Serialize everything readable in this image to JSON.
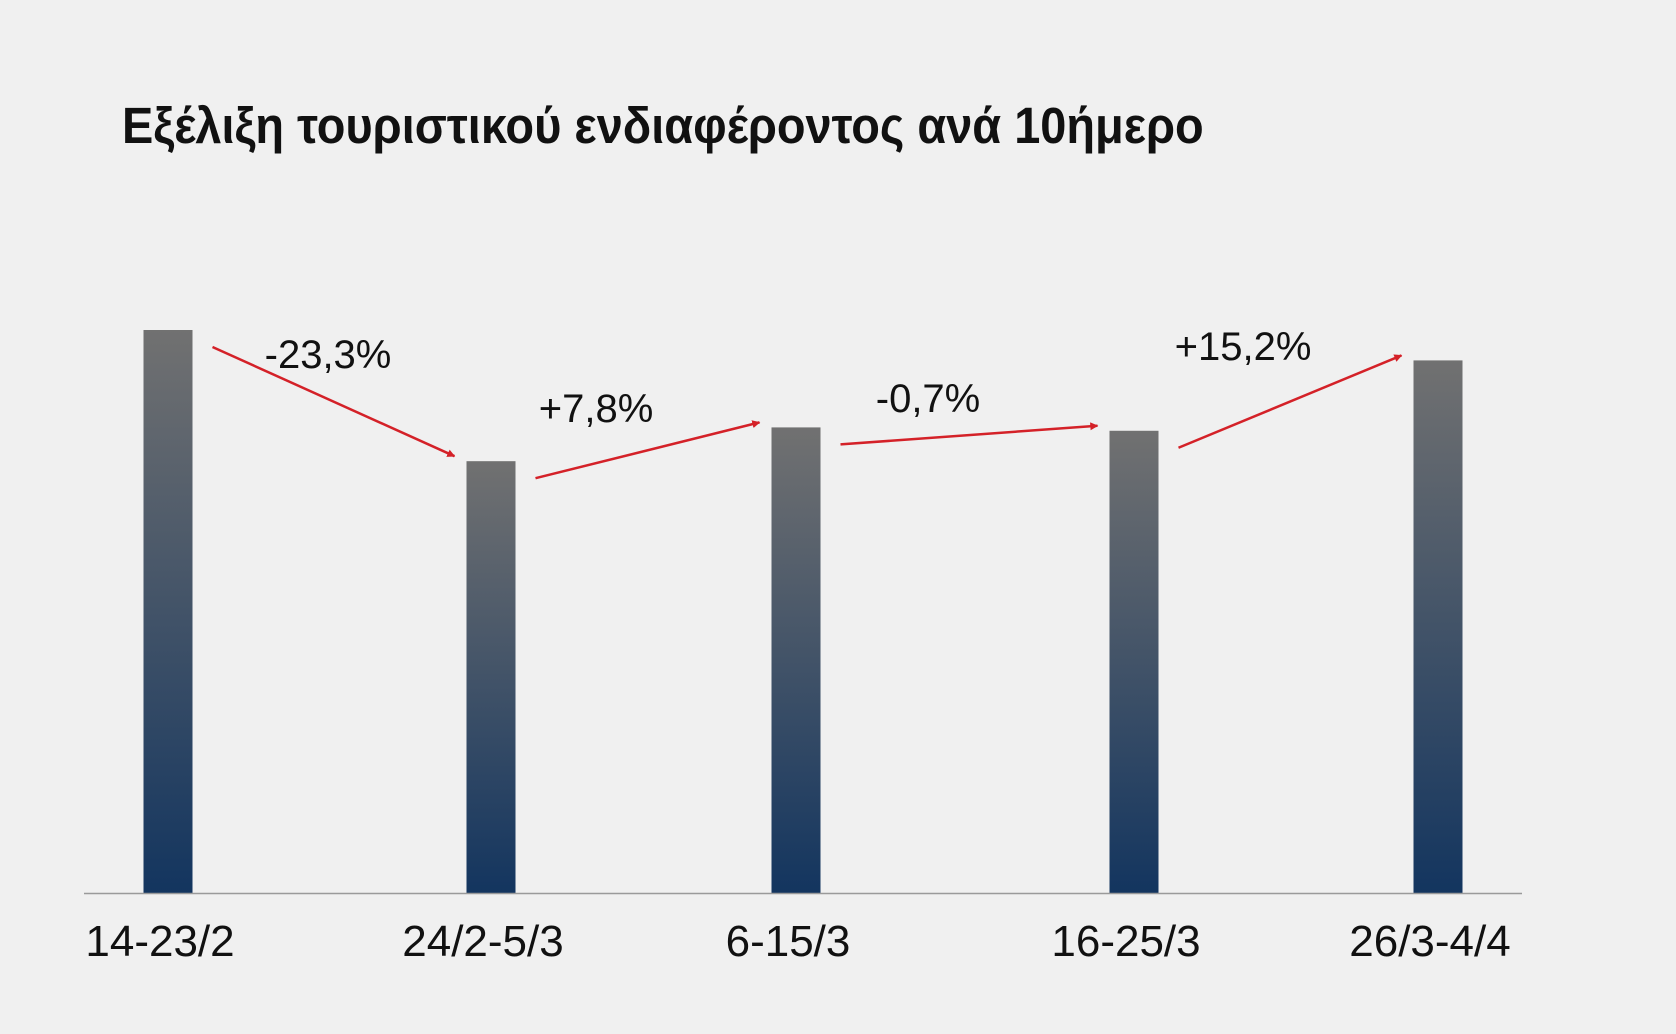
{
  "colors": {
    "background": "#f0f0f0",
    "bar_top": "#717171",
    "bar_bottom": "#13355f",
    "arrow": "#d42128",
    "axis": "#9a9a9a",
    "text": "#111111"
  },
  "chart_data": {
    "type": "bar",
    "title": "Εξέλιξη τουριστικού ενδιαφέροντος ανά 10ήμερο",
    "xlabel": "",
    "ylabel": "",
    "categories": [
      "14-23/2",
      "24/2-5/3",
      "6-15/3",
      "16-25/3",
      "26/3-4/4"
    ],
    "values": [
      100,
      76.7,
      82.7,
      82.1,
      94.6
    ],
    "ylim": [
      0,
      100
    ],
    "y_axis_visible": false,
    "grid": false,
    "changes": [
      {
        "from": "14-23/2",
        "to": "24/2-5/3",
        "label": "-23,3%"
      },
      {
        "from": "24/2-5/3",
        "to": "6-15/3",
        "label": "+7,8%"
      },
      {
        "from": "6-15/3",
        "to": "16-25/3",
        "label": "-0,7%"
      },
      {
        "from": "16-25/3",
        "to": "26/3-4/4",
        "label": "+15,2%"
      }
    ]
  }
}
